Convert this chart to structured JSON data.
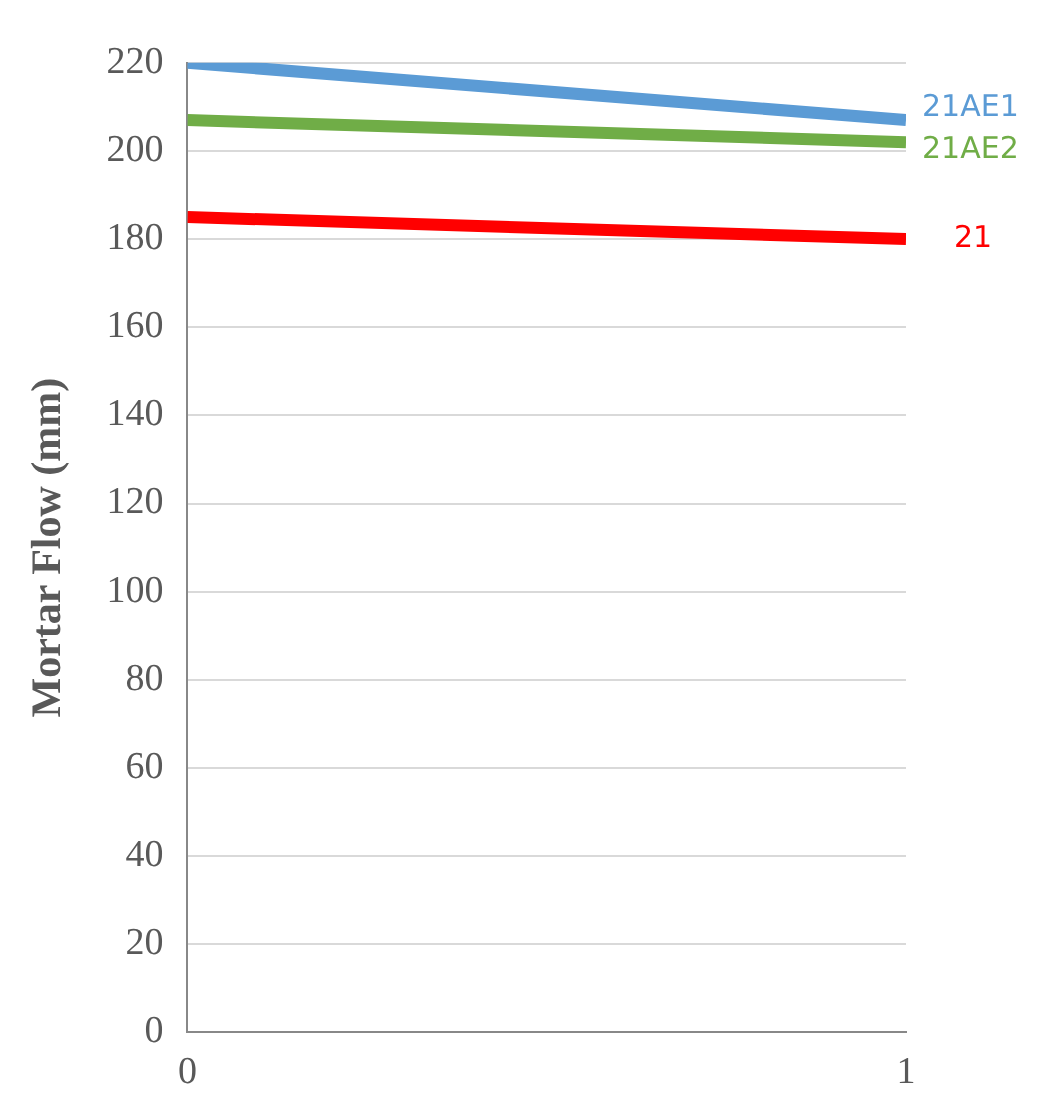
{
  "chart_data": {
    "type": "line",
    "ylabel": "Mortar Flow (mm)",
    "x": [
      0,
      1
    ],
    "xlim": [
      0,
      1
    ],
    "xticks": [
      0,
      1
    ],
    "ylim": [
      0,
      220
    ],
    "yticks": [
      0,
      20,
      40,
      60,
      80,
      100,
      120,
      140,
      160,
      180,
      200,
      220
    ],
    "grid": "y",
    "legend": false,
    "marker": "none",
    "line_style": "solid",
    "series": [
      {
        "name": "21AE1",
        "color": "#5b9bd5",
        "values": [
          220,
          207
        ]
      },
      {
        "name": "21AE2",
        "color": "#70ad47",
        "values": [
          207,
          202
        ]
      },
      {
        "name": "21",
        "color": "#ff0000",
        "values": [
          185,
          180
        ]
      }
    ]
  }
}
